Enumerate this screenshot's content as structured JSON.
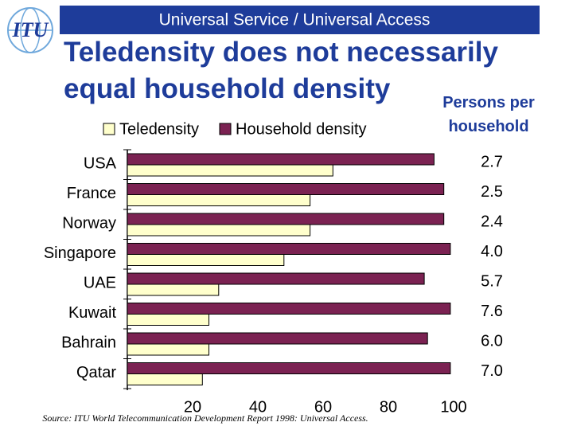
{
  "header": "Universal Service / Universal Access",
  "logo": "ITU",
  "chart_data": {
    "type": "bar",
    "orientation": "horizontal",
    "title": "Teledensity does not necessarily equal household density",
    "categories": [
      "USA",
      "France",
      "Norway",
      "Singapore",
      "UAE",
      "Kuwait",
      "Bahrain",
      "Qatar"
    ],
    "series": [
      {
        "name": "Household density",
        "color": "#7b2252",
        "values": [
          94,
          97,
          97,
          99,
          91,
          99,
          92,
          99
        ]
      },
      {
        "name": "Teledensity",
        "color": "#ffffcc",
        "values": [
          63,
          56,
          56,
          48,
          28,
          25,
          25,
          23
        ]
      }
    ],
    "xlim": [
      0,
      100
    ],
    "xticks": [
      20,
      40,
      60,
      80,
      100
    ],
    "persons_per_household": {
      "title": "Persons per household",
      "values": [
        2.7,
        2.5,
        2.4,
        4,
        5.7,
        7.6,
        6,
        7
      ],
      "value_labels": [
        "2.7",
        "2.5",
        "2.4",
        "4.0",
        "5.7",
        "7.6",
        "6.0",
        "7.0"
      ]
    },
    "source": "Source:  ITU World Telecommunication Development Report 1998: Universal Access."
  }
}
